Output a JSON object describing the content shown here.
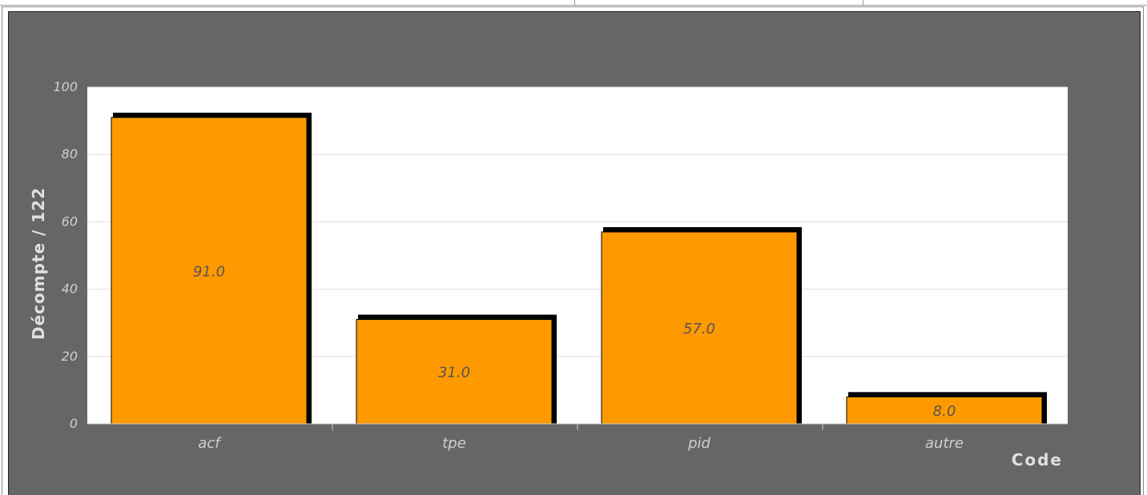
{
  "chart_data": {
    "type": "bar",
    "categories": [
      "acf",
      "tpe",
      "pid",
      "autre"
    ],
    "values": [
      91.0,
      31.0,
      57.0,
      8.0
    ],
    "data_labels": [
      "91.0",
      "31.0",
      "57.0",
      "8.0"
    ],
    "title": "",
    "xlabel": "Code",
    "ylabel": "Décompte / 122",
    "ylim": [
      0,
      100
    ],
    "yticks": [
      0,
      20,
      40,
      60,
      80,
      100
    ],
    "ytick_labels": [
      "0",
      "20",
      "40",
      "60",
      "80",
      "100"
    ],
    "grid": true,
    "legend": "none"
  },
  "colors": {
    "panel_background": "#666666",
    "plot_background": "#ffffff",
    "bar_fill": "#ff9900",
    "bar_shadow": "#000000",
    "tick_label": "#cfcfcf",
    "axis_title": "#e0e0e0",
    "data_label": "#555555",
    "gridline": "#dddddd"
  }
}
